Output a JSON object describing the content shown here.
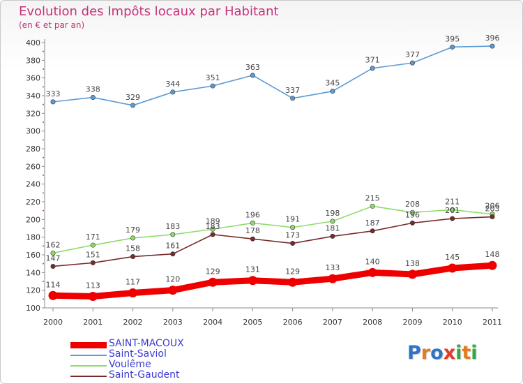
{
  "header": {
    "title": "Evolution des Impôts locaux par Habitant",
    "subtitle": "(en € et par an)"
  },
  "logo": {
    "text": "Proxiti",
    "letter_colors": [
      "#2f73c8",
      "#e07d22",
      "#2f73c8",
      "#e23b2a",
      "#35a846",
      "#e07d22",
      "#35a846"
    ]
  },
  "chart_data": {
    "type": "line",
    "title": "Evolution des Impôts locaux par Habitant",
    "subtitle": "(en € et par an)",
    "x": [
      "2000",
      "2001",
      "2002",
      "2003",
      "2004",
      "2005",
      "2006",
      "2007",
      "2008",
      "2009",
      "2010",
      "2011"
    ],
    "ylim": [
      100,
      400
    ],
    "yticks": [
      100,
      120,
      140,
      160,
      180,
      200,
      220,
      240,
      260,
      280,
      300,
      320,
      340,
      360,
      380,
      400
    ],
    "grid": false,
    "legend_position": "bottom-left",
    "series": [
      {
        "name": "SAINT-MACOUX",
        "color": "#ee0000",
        "emphasis": true,
        "values": [
          114,
          113,
          117,
          120,
          129,
          131,
          129,
          133,
          140,
          138,
          145,
          148
        ]
      },
      {
        "name": "Saint-Saviol",
        "color": "#5b9bd5",
        "emphasis": false,
        "values": [
          333,
          338,
          329,
          344,
          351,
          363,
          337,
          345,
          371,
          377,
          395,
          396
        ]
      },
      {
        "name": "Voulême",
        "color": "#8fdb6a",
        "emphasis": false,
        "values": [
          162,
          171,
          179,
          183,
          189,
          196,
          191,
          198,
          215,
          208,
          211,
          206
        ]
      },
      {
        "name": "Saint-Gaudent",
        "color": "#7a2a2a",
        "emphasis": false,
        "values": [
          147,
          151,
          158,
          161,
          183,
          178,
          173,
          181,
          187,
          196,
          201,
          203
        ]
      }
    ]
  }
}
